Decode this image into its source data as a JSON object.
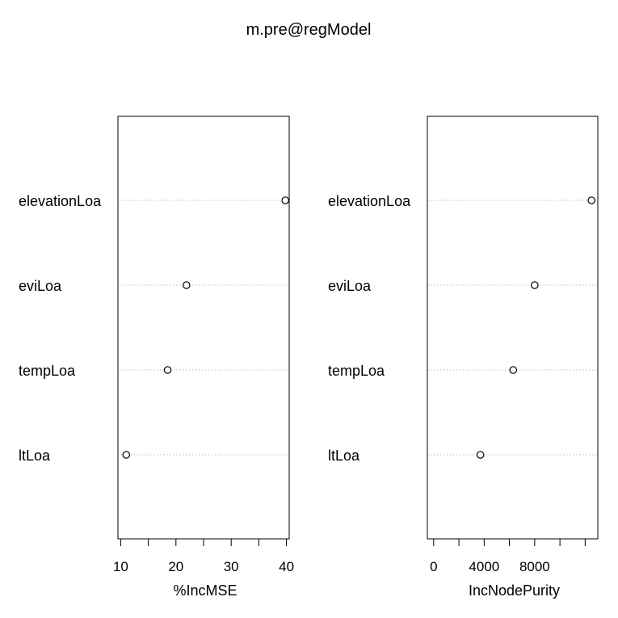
{
  "title": "m.pre@regModel",
  "chart_data": [
    {
      "type": "scatter",
      "xlabel": "%IncMSE",
      "xlim": [
        9.5,
        40.5
      ],
      "ticks": [
        10,
        15,
        20,
        25,
        30,
        35,
        40
      ],
      "tick_labels": [
        "10",
        "",
        "20",
        "",
        "30",
        "",
        "40"
      ],
      "categories": [
        "elevationLoa",
        "eviLoa",
        "tempLoa",
        "ltLoa"
      ],
      "values": [
        39.8,
        21.9,
        18.5,
        11.0
      ],
      "grid": "dotted horizontal guides"
    },
    {
      "type": "scatter",
      "xlabel": "IncNodePurity",
      "xlim": [
        -500,
        13000
      ],
      "ticks": [
        0,
        2000,
        4000,
        6000,
        8000,
        10000,
        12000
      ],
      "tick_labels": [
        "0",
        "",
        "4000",
        "",
        "8000",
        "",
        ""
      ],
      "categories": [
        "elevationLoa",
        "eviLoa",
        "tempLoa",
        "ltLoa"
      ],
      "values": [
        12500,
        8000,
        6300,
        3700
      ],
      "grid": "dotted horizontal guides"
    }
  ]
}
